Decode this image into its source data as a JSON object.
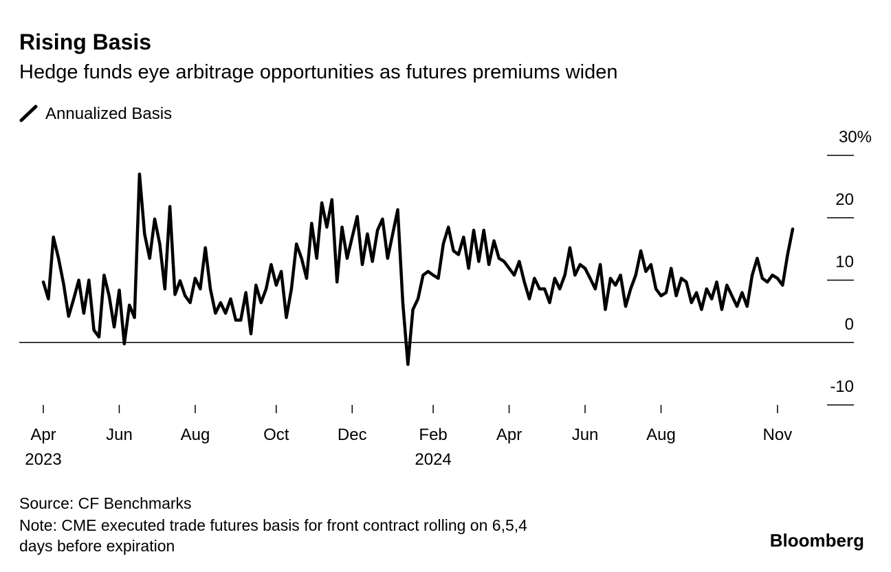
{
  "chart_data": {
    "type": "line",
    "title": "Rising Basis",
    "subtitle": "Hedge funds eye arbitrage opportunities as futures premiums widen",
    "source": "Source: CF Benchmarks",
    "note": "Note: CME executed trade futures basis for front contract rolling on 6,5,4 days before expiration",
    "brand": "Bloomberg",
    "categories": [
      "Apr 2023",
      null,
      null,
      null,
      null,
      null,
      null,
      null,
      null,
      null,
      null,
      null,
      null,
      null,
      null,
      "Jun",
      null,
      null,
      null,
      null,
      null,
      null,
      null,
      null,
      null,
      null,
      null,
      null,
      null,
      null,
      "Aug",
      null,
      null,
      null,
      null,
      null,
      null,
      null,
      null,
      null,
      null,
      null,
      null,
      null,
      null,
      null,
      "Oct",
      null,
      null,
      null,
      null,
      null,
      null,
      null,
      null,
      null,
      null,
      null,
      null,
      null,
      null,
      "Dec",
      null,
      null,
      null,
      null,
      null,
      null,
      null,
      null,
      null,
      null,
      null,
      null,
      null,
      null,
      null,
      "Feb 2024",
      null,
      null,
      null,
      null,
      null,
      null,
      null,
      null,
      null,
      null,
      null,
      null,
      null,
      null,
      "Apr",
      null,
      null,
      null,
      null,
      null,
      null,
      null,
      null,
      null,
      null,
      null,
      null,
      null,
      null,
      "Jun",
      null,
      null,
      null,
      null,
      null,
      null,
      null,
      null,
      null,
      null,
      null,
      null,
      null,
      null,
      "Aug",
      null,
      null,
      null,
      null,
      null,
      null,
      null,
      null,
      null,
      null,
      null,
      null,
      null,
      null,
      null,
      null,
      null,
      null,
      null,
      null,
      null,
      null,
      "Nov",
      null,
      null,
      null
    ],
    "series": [
      {
        "name": "Annualized Basis",
        "color": "#000000",
        "values": [
          9.7,
          7,
          16.9,
          13.5,
          9.4,
          4.2,
          7,
          10,
          4.7,
          10,
          2,
          0.9,
          10.8,
          7.5,
          2.5,
          8.4,
          -0.2,
          6,
          4,
          27,
          17.4,
          13.5,
          19.8,
          15.8,
          8.6,
          21.8,
          7.7,
          9.9,
          7.5,
          6.4,
          10.3,
          8.6,
          15.2,
          8.6,
          4.7,
          6.4,
          4.7,
          7,
          3.6,
          3.6,
          8,
          1.4,
          9.2,
          6.4,
          8.6,
          12.5,
          9.2,
          11.4,
          4,
          8.6,
          15.8,
          13.5,
          10.3,
          19.1,
          13.5,
          22.4,
          18.5,
          22.9,
          9.7,
          18.5,
          13.5,
          16.9,
          20.2,
          12.5,
          17.4,
          13,
          18,
          19.8,
          13.5,
          17.4,
          21.3,
          6.4,
          -3.5,
          5.3,
          7,
          10.8,
          11.4,
          10.8,
          10.3,
          15.8,
          18.5,
          14.7,
          14.1,
          16.9,
          11.9,
          18,
          13,
          18,
          12.5,
          16.3,
          13.5,
          13,
          11.9,
          10.8,
          13,
          9.7,
          7,
          10.3,
          8.6,
          8.6,
          6.4,
          10.3,
          8.6,
          10.8,
          15.2,
          10.8,
          12.5,
          11.9,
          10.3,
          8.6,
          12.5,
          5.3,
          10.3,
          9.2,
          10.8,
          5.8,
          8.6,
          10.8,
          14.7,
          11.4,
          12.5,
          8.6,
          7.5,
          8,
          11.9,
          7.5,
          10.3,
          9.7,
          6.4,
          8,
          5.3,
          8.6,
          7,
          9.7,
          5.3,
          9.2,
          7.5,
          5.8,
          8,
          5.8,
          10.8,
          13.5,
          10.3,
          9.7,
          10.8,
          10.3,
          9.2,
          14.1,
          18.2
        ]
      }
    ],
    "ylim": [
      -10,
      30
    ],
    "yticks": [
      {
        "value": 30,
        "label": "30%"
      },
      20,
      10,
      0,
      -10
    ]
  }
}
